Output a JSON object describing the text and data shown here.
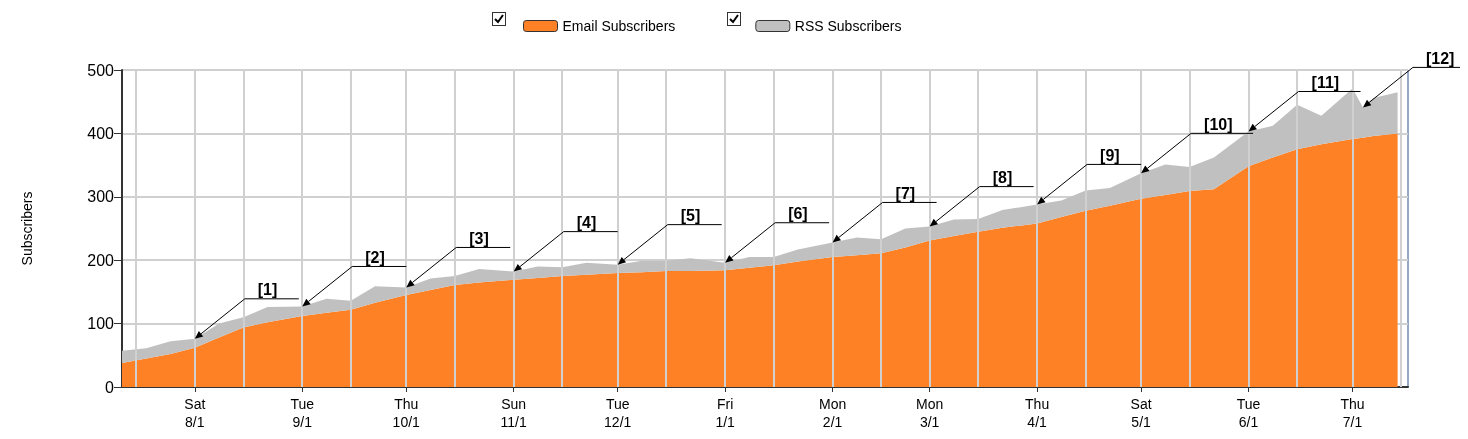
{
  "chart_data": {
    "type": "area",
    "stacked": true,
    "ylabel": "Subscribers",
    "legend": "top",
    "grid": true,
    "marker": "none",
    "x": [
      "2009-07-11",
      "2009-07-18",
      "2009-07-25",
      "2009-08-01",
      "2009-08-08",
      "2009-08-15",
      "2009-08-22",
      "2009-09-01",
      "2009-09-08",
      "2009-09-15",
      "2009-09-22",
      "2009-10-01",
      "2009-10-08",
      "2009-10-15",
      "2009-10-22",
      "2009-11-01",
      "2009-11-08",
      "2009-11-15",
      "2009-11-22",
      "2009-12-01",
      "2009-12-08",
      "2009-12-15",
      "2009-12-22",
      "2010-01-01",
      "2010-01-08",
      "2010-01-15",
      "2010-01-22",
      "2010-02-01",
      "2010-02-08",
      "2010-02-15",
      "2010-02-22",
      "2010-03-01",
      "2010-03-08",
      "2010-03-15",
      "2010-03-22",
      "2010-04-01",
      "2010-04-08",
      "2010-04-15",
      "2010-04-22",
      "2010-05-01",
      "2010-05-08",
      "2010-05-15",
      "2010-05-22",
      "2010-06-01",
      "2010-06-08",
      "2010-06-15",
      "2010-06-22",
      "2010-07-01",
      "2010-07-04",
      "2010-07-07",
      "2010-07-14"
    ],
    "series": [
      {
        "name": "Email Subscribers",
        "color": "#ff8125",
        "values": [
          38,
          45,
          52,
          62,
          78,
          94,
          102,
          112,
          117,
          122,
          133,
          145,
          153,
          161,
          165,
          169,
          172,
          175,
          177,
          180,
          181,
          183,
          183,
          184,
          188,
          192,
          198,
          205,
          208,
          211,
          220,
          231,
          238,
          245,
          251,
          258,
          268,
          278,
          286,
          297,
          303,
          309,
          312,
          348,
          362,
          375,
          383,
          391,
          393,
          396,
          400
        ]
      },
      {
        "name": "RSS Subscribers",
        "color": "#c0c0c0",
        "values": [
          19,
          16,
          20,
          14,
          22,
          16,
          24,
          15,
          22,
          14,
          26,
          12,
          18,
          14,
          21,
          13,
          18,
          14,
          19,
          13,
          18,
          16,
          20,
          12,
          17,
          13,
          19,
          23,
          28,
          22,
          30,
          22,
          26,
          20,
          28,
          30,
          26,
          32,
          28,
          40,
          48,
          38,
          50,
          55,
          50,
          70,
          45,
          80,
          48,
          60,
          65
        ]
      }
    ],
    "xlim": [
      "2009-07-11",
      "2010-07-17"
    ],
    "xticks": [
      {
        "value": "2009-07-15",
        "label": null
      },
      {
        "value": "2009-08-01",
        "label": "Sat\n8/1"
      },
      {
        "value": "2009-08-15",
        "label": null
      },
      {
        "value": "2009-09-01",
        "label": "Tue\n9/1"
      },
      {
        "value": "2009-09-15",
        "label": null
      },
      {
        "value": "2009-10-01",
        "label": "Thu\n10/1"
      },
      {
        "value": "2009-10-15",
        "label": null
      },
      {
        "value": "2009-11-01",
        "label": "Sun\n11/1"
      },
      {
        "value": "2009-11-15",
        "label": null
      },
      {
        "value": "2009-12-01",
        "label": "Tue\n12/1"
      },
      {
        "value": "2009-12-15",
        "label": null
      },
      {
        "value": "2010-01-01",
        "label": "Fri\n1/1"
      },
      {
        "value": "2010-01-15",
        "label": null
      },
      {
        "value": "2010-02-01",
        "label": "Mon\n2/1"
      },
      {
        "value": "2010-02-15",
        "label": null
      },
      {
        "value": "2010-03-01",
        "label": "Mon\n3/1"
      },
      {
        "value": "2010-03-15",
        "label": null
      },
      {
        "value": "2010-04-01",
        "label": "Thu\n4/1"
      },
      {
        "value": "2010-04-15",
        "label": null
      },
      {
        "value": "2010-05-01",
        "label": "Sat\n5/1"
      },
      {
        "value": "2010-05-15",
        "label": null
      },
      {
        "value": "2010-06-01",
        "label": "Tue\n6/1"
      },
      {
        "value": "2010-06-15",
        "label": null
      },
      {
        "value": "2010-07-01",
        "label": "Thu\n7/1"
      },
      {
        "value": "2010-07-15",
        "label": null
      }
    ],
    "ylim": [
      0,
      500
    ],
    "yticks": [
      0,
      100,
      200,
      300,
      400,
      500
    ],
    "annotations": [
      {
        "text": "[1]",
        "x": "2009-08-01",
        "y": 76
      },
      {
        "text": "[2]",
        "x": "2009-09-01",
        "y": 127
      },
      {
        "text": "[3]",
        "x": "2009-10-01",
        "y": 157
      },
      {
        "text": "[4]",
        "x": "2009-11-01",
        "y": 182
      },
      {
        "text": "[5]",
        "x": "2009-12-01",
        "y": 193
      },
      {
        "text": "[6]",
        "x": "2010-01-01",
        "y": 196
      },
      {
        "text": "[7]",
        "x": "2010-02-01",
        "y": 228
      },
      {
        "text": "[8]",
        "x": "2010-03-01",
        "y": 253
      },
      {
        "text": "[9]",
        "x": "2010-04-01",
        "y": 288
      },
      {
        "text": "[10]",
        "x": "2010-05-01",
        "y": 337
      },
      {
        "text": "[11]",
        "x": "2010-06-01",
        "y": 403
      },
      {
        "text": "[12]",
        "x": "2010-07-04",
        "y": 441
      }
    ]
  }
}
